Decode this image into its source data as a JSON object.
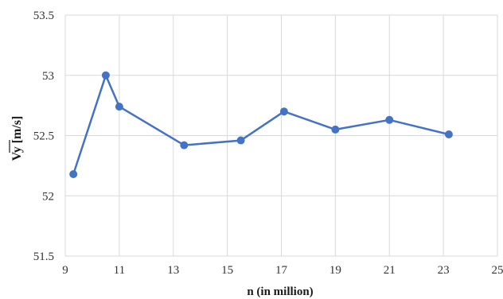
{
  "chart_data": {
    "type": "line",
    "xlabel": "n (in million)",
    "ylabel": "Vy [m/s]",
    "ylabel_overline": true,
    "xlim": [
      9,
      25
    ],
    "ylim": [
      51.5,
      53.5
    ],
    "xticks": [
      9,
      11,
      13,
      15,
      17,
      19,
      21,
      23,
      25
    ],
    "yticks": [
      51.5,
      52,
      52.5,
      53,
      53.5
    ],
    "xtick_labels": [
      "9",
      "11",
      "13",
      "15",
      "17",
      "19",
      "21",
      "23",
      "25"
    ],
    "ytick_labels": [
      "51.5",
      "52",
      "52.5",
      "53",
      "53.5"
    ],
    "grid": true,
    "legend": "none",
    "series": [
      {
        "color": "#4472c4",
        "marker": "circle",
        "x": [
          9.3,
          10.5,
          11.0,
          13.4,
          15.5,
          17.1,
          19.0,
          21.0,
          23.2
        ],
        "y": [
          52.18,
          53.0,
          52.74,
          52.42,
          52.46,
          52.7,
          52.55,
          52.63,
          52.51
        ]
      }
    ]
  }
}
